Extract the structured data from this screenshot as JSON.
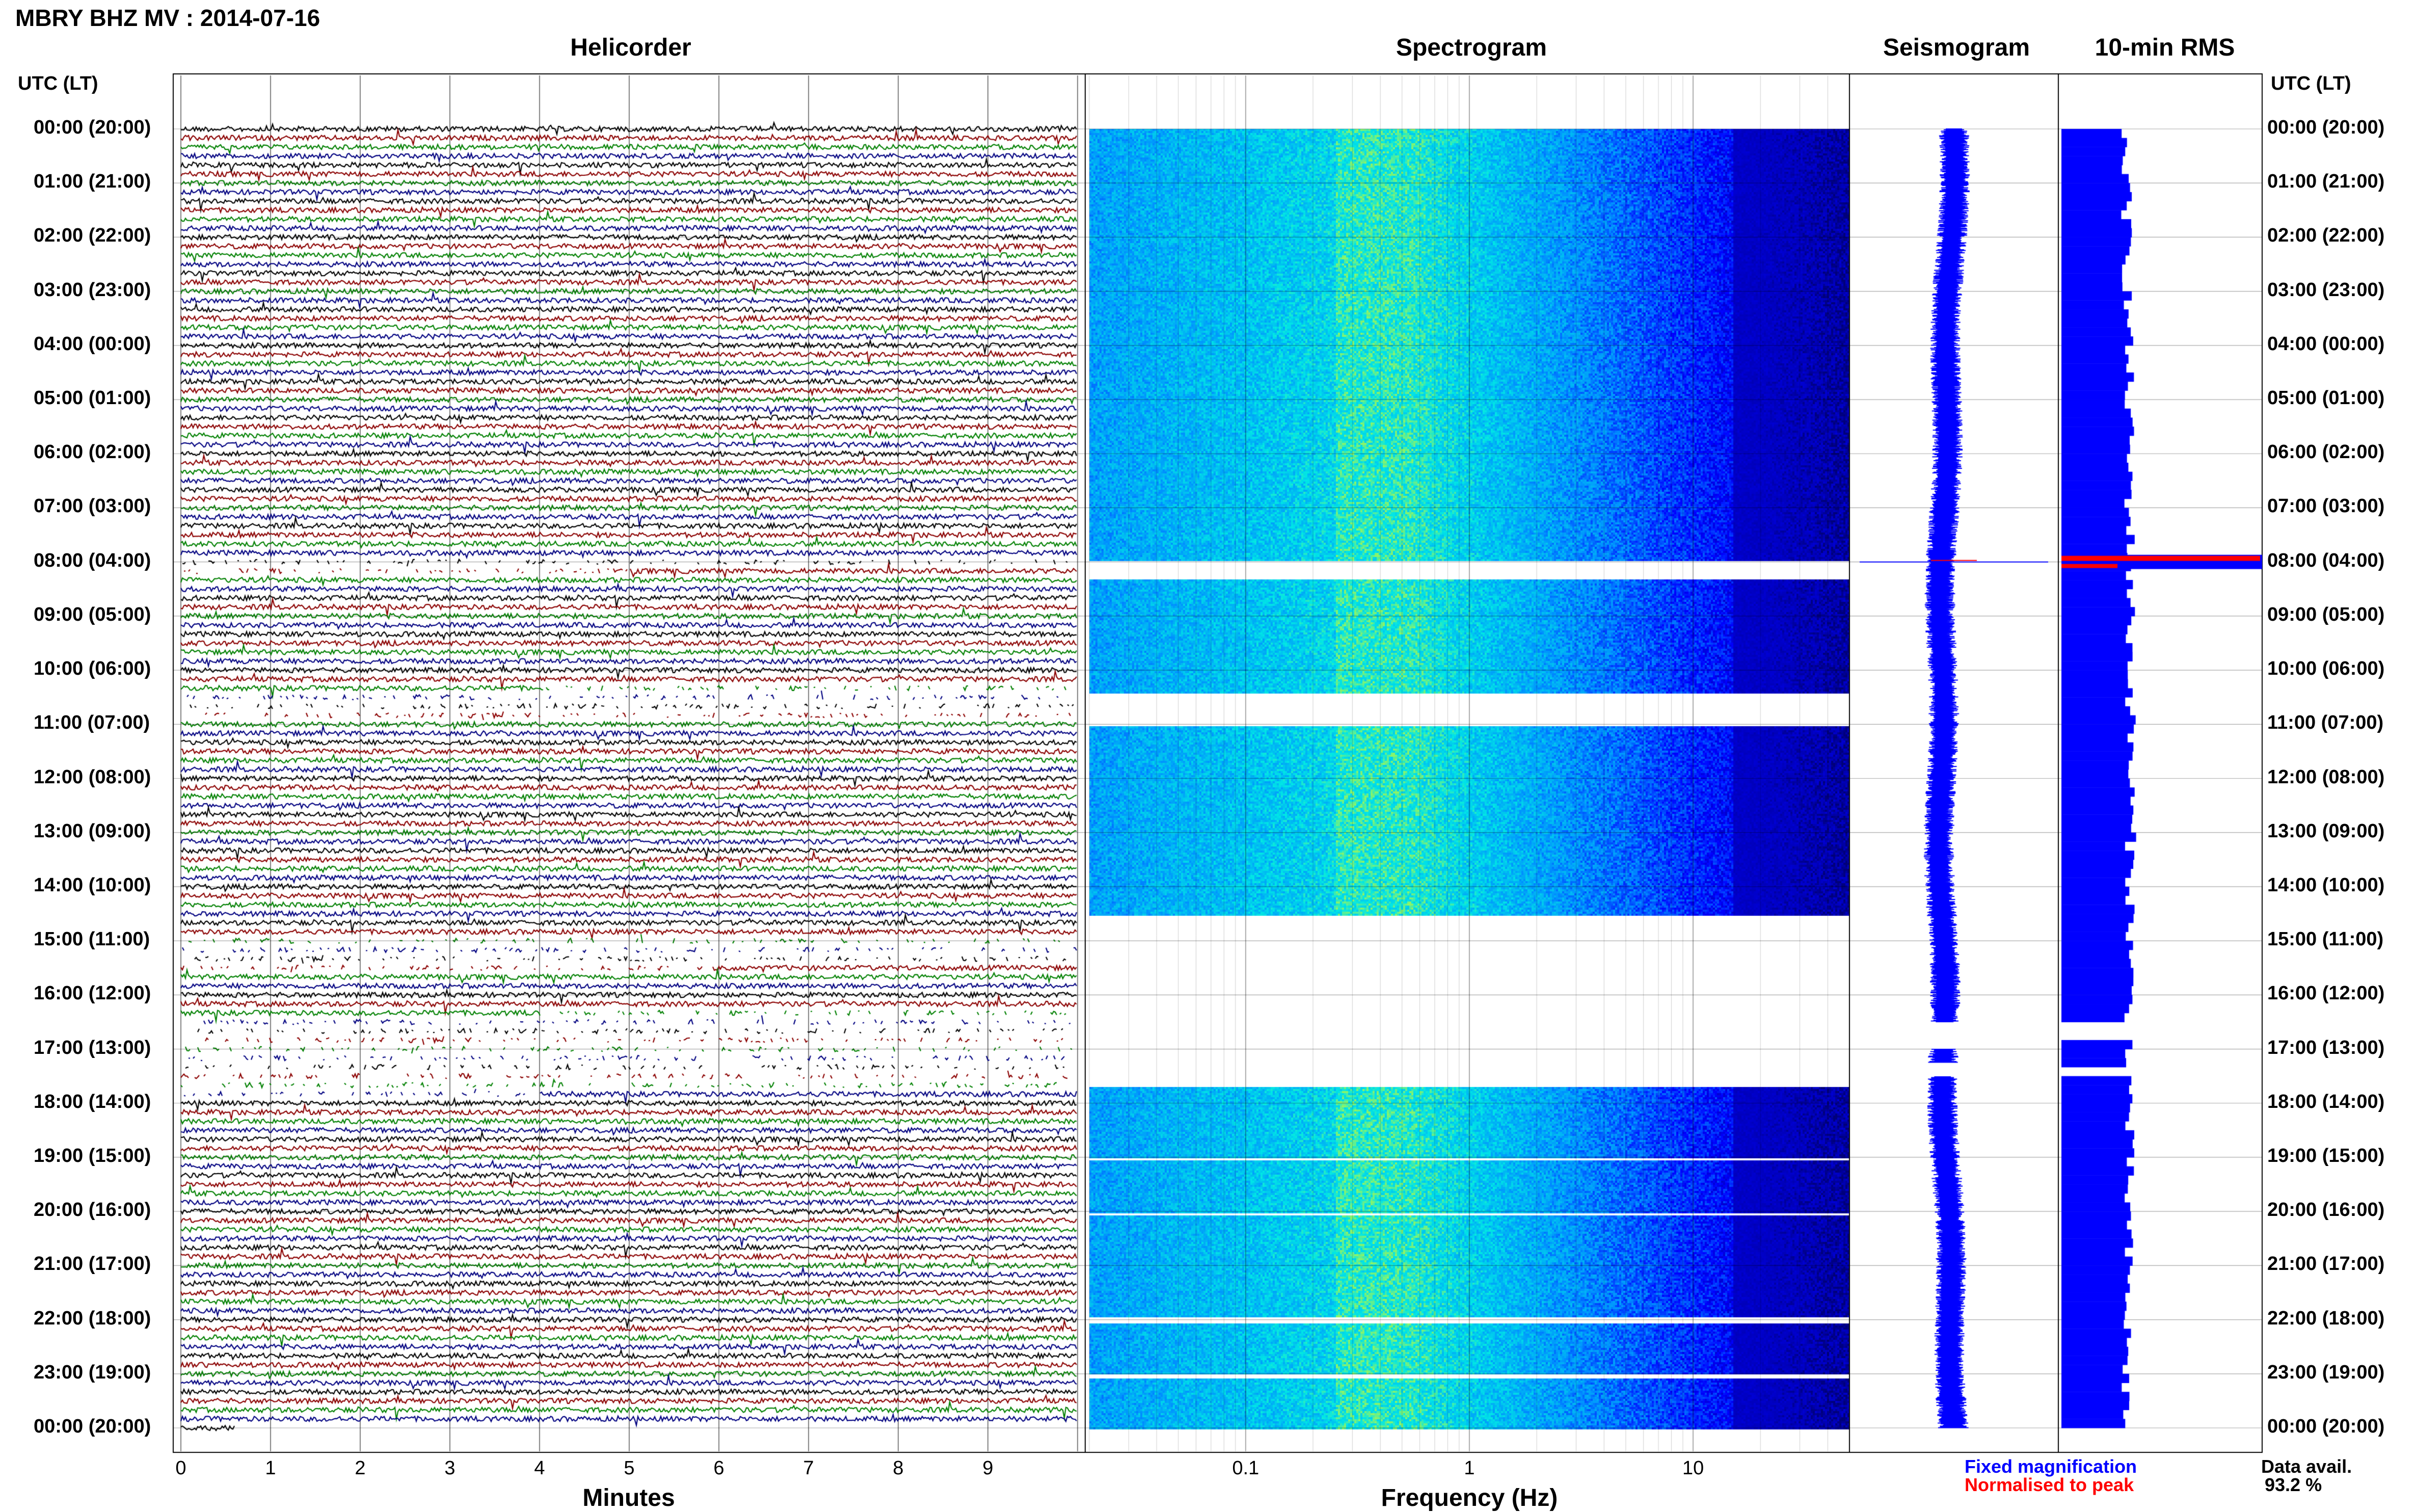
{
  "title": "MBRY BHZ MV : 2014-07-16",
  "panels": {
    "helicorder": "Helicorder",
    "spectrogram": "Spectrogram",
    "seismogram": "Seismogram",
    "rms": "10-min RMS"
  },
  "time_axis_title": "UTC (LT)",
  "time_labels": [
    "00:00 (20:00)",
    "01:00 (21:00)",
    "02:00 (22:00)",
    "03:00 (23:00)",
    "04:00 (00:00)",
    "05:00 (01:00)",
    "06:00 (02:00)",
    "07:00 (03:00)",
    "08:00 (04:00)",
    "09:00 (05:00)",
    "10:00 (06:00)",
    "11:00 (07:00)",
    "12:00 (08:00)",
    "13:00 (09:00)",
    "14:00 (10:00)",
    "15:00 (11:00)",
    "16:00 (12:00)",
    "17:00 (13:00)",
    "18:00 (14:00)",
    "19:00 (15:00)",
    "20:00 (16:00)",
    "21:00 (17:00)",
    "22:00 (18:00)",
    "23:00 (19:00)",
    "00:00 (20:00)"
  ],
  "helicorder_xlabel": "Minutes",
  "helicorder_ticks": [
    "0",
    "1",
    "2",
    "3",
    "4",
    "5",
    "6",
    "7",
    "8",
    "9"
  ],
  "spectrogram_xlabel": "Frequency (Hz)",
  "spectrogram_ticks": [
    "0.1",
    "1",
    "10"
  ],
  "legend": {
    "fixed": "Fixed magnification",
    "normalised": "Normalised to peak",
    "fixed_color": "#0000ff",
    "normalised_color": "#ff0000"
  },
  "data_avail_label": "Data avail.",
  "data_avail_value": "93.2 %",
  "colors": {
    "trace_cycle": [
      "#000000",
      "#8b0000",
      "#008000",
      "#000080"
    ],
    "rms_fill": "#0000ff",
    "rms_peak": "#ff0000",
    "spectrogram_cmap": [
      "#00007a",
      "#0000ff",
      "#0090ff",
      "#00e6e6",
      "#ffff00"
    ]
  },
  "chart_data": [
    {
      "type": "line",
      "title": "Helicorder",
      "xlabel": "Minutes",
      "xlim": [
        0,
        10
      ],
      "ylim_hours_utc": [
        0,
        24
      ],
      "lines_per_hour": 6,
      "minutes_per_line": 10,
      "gaps_utc_hours": [
        [
          8.0,
          8.25
        ],
        [
          10.4,
          11.0
        ],
        [
          15.0,
          15.6
        ],
        [
          16.4,
          17.9
        ]
      ]
    },
    {
      "type": "heatmap",
      "title": "Spectrogram",
      "xlabel": "Frequency (Hz)",
      "xscale": "log",
      "xlim": [
        0.02,
        50
      ],
      "ylim_hours_utc": [
        0,
        24
      ],
      "peak_band_hz": [
        0.2,
        0.6
      ],
      "gaps_utc_hours": [
        [
          7.95,
          8.3
        ],
        [
          10.4,
          11.0
        ],
        [
          14.5,
          16.4
        ],
        [
          16.4,
          17.7
        ],
        [
          19.0,
          19.05
        ],
        [
          20.0,
          20.05
        ],
        [
          21.95,
          22.05
        ],
        [
          23.0,
          23.05
        ]
      ]
    },
    {
      "type": "line",
      "title": "Seismogram",
      "ylim_hours_utc": [
        0,
        24
      ],
      "peak_utc_hour": 8.0,
      "gaps_utc_hours": [
        [
          16.5,
          17.0
        ],
        [
          17.25,
          17.5
        ]
      ]
    },
    {
      "type": "bar",
      "title": "10-min RMS",
      "ylim_hours_utc": [
        0,
        24
      ],
      "peak_utc_hour": 8.0,
      "gaps_utc_hours": [
        [
          16.55,
          16.85
        ],
        [
          17.25,
          17.4
        ]
      ]
    }
  ]
}
